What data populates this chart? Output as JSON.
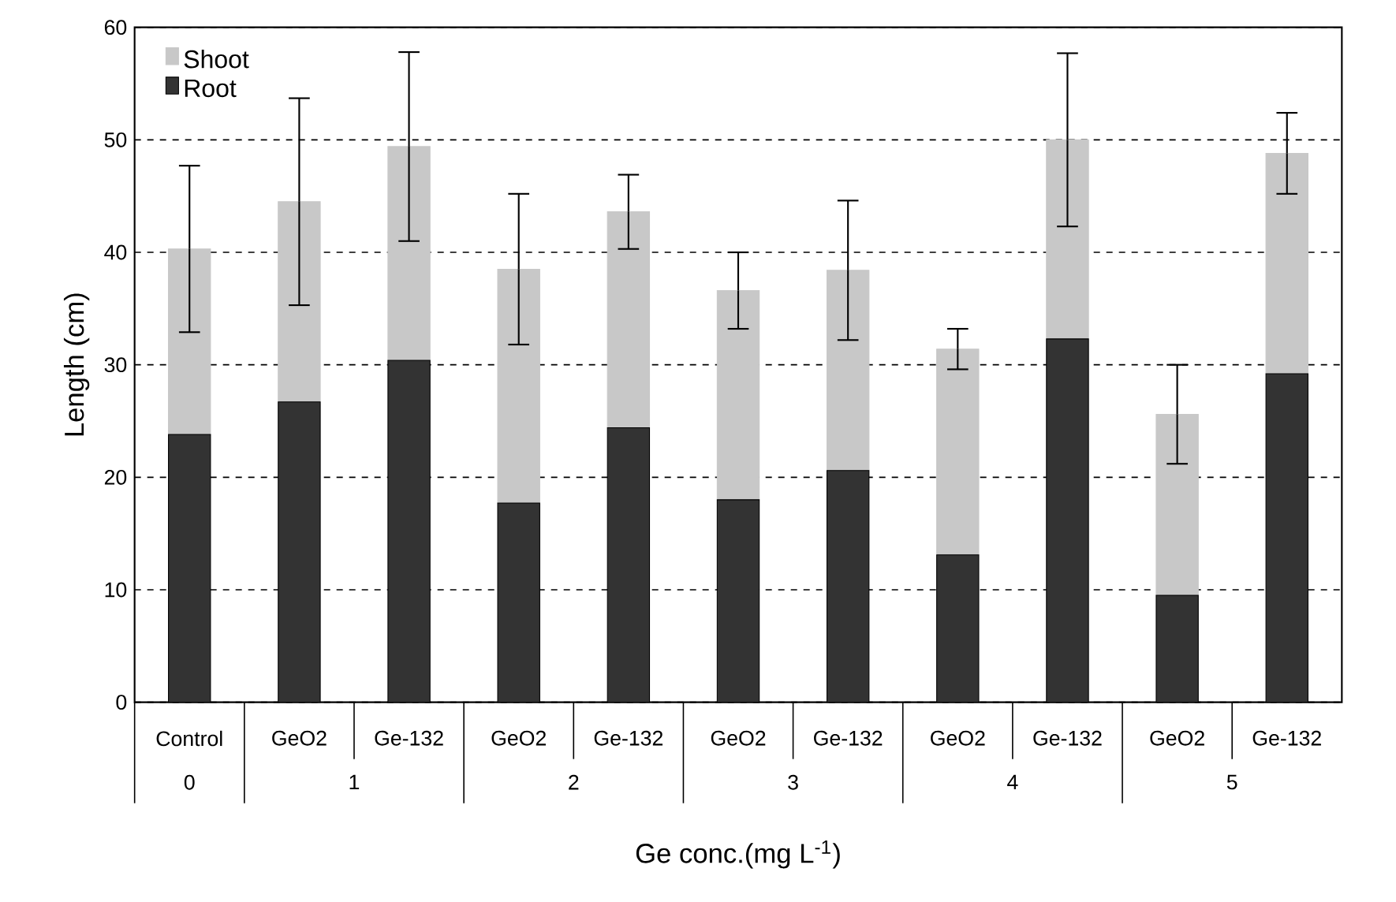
{
  "chart_data": {
    "type": "bar",
    "stacked": true,
    "xlabel": "Ge conc.(mg L$^{-1}$)",
    "ylabel": "Length (cm)",
    "categories": [
      "Control",
      "GeO2",
      "Ge-132",
      "GeO2",
      "Ge-132",
      "GeO2",
      "Ge-132",
      "GeO2",
      "Ge-132",
      "GeO2",
      "Ge-132"
    ],
    "series": [
      {
        "name": "Root",
        "color": "#333333",
        "values": [
          23.8,
          26.7,
          30.4,
          17.7,
          24.4,
          18.0,
          20.6,
          13.1,
          32.3,
          9.5,
          29.2
        ]
      },
      {
        "name": "Shoot",
        "color": "#c8c8c8",
        "values": [
          16.5,
          17.8,
          19.0,
          20.8,
          19.2,
          18.6,
          17.8,
          18.3,
          17.7,
          16.1,
          19.6
        ],
        "errors": [
          7.4,
          9.2,
          8.4,
          6.7,
          3.3,
          3.4,
          6.2,
          1.8,
          7.7,
          4.4,
          3.6
        ]
      }
    ],
    "ylim": [
      0,
      60
    ],
    "yticks": [
      0,
      10,
      20,
      30,
      40,
      50,
      60
    ],
    "grid": "y",
    "legend": "top left",
    "annotations": [
      "0",
      "1",
      "2",
      "3",
      "4",
      "5"
    ]
  }
}
